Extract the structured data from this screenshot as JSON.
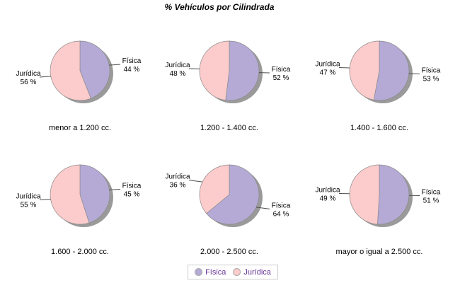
{
  "title": "% Vehículos por Cilindrada",
  "chart_data": {
    "type": "pie",
    "title": "% Vehículos por Cilindrada",
    "legend_position": "bottom",
    "series_names": [
      "Física",
      "Jurídica"
    ],
    "colors": {
      "Física": "#B5AAD6",
      "Jurídica": "#FCCBCB"
    },
    "value_suffix": " %",
    "charts": [
      {
        "category": "menor a 1.200 cc.",
        "values": [
          44,
          56
        ]
      },
      {
        "category": "1.200 - 1.400 cc.",
        "values": [
          52,
          48
        ]
      },
      {
        "category": "1.400 - 1.600 cc.",
        "values": [
          53,
          47
        ]
      },
      {
        "category": "1.600 - 2.000 cc.",
        "values": [
          45,
          55
        ]
      },
      {
        "category": "2.000 - 2.500 cc.",
        "values": [
          64,
          36
        ]
      },
      {
        "category": "mayor o igual a 2.500 cc.",
        "values": [
          51,
          49
        ]
      }
    ]
  },
  "legend": {
    "items": [
      {
        "label": "Física",
        "color": "#B5AAD6"
      },
      {
        "label": "Jurídica",
        "color": "#FCCBCB"
      }
    ]
  },
  "style": {
    "shadow": "#9A9A9A",
    "outline": "#8A8A8A",
    "leader_line": "#4D4D4D",
    "label_color": "#000000",
    "legend_text": "#663399",
    "legend_border": "#CCCCCC",
    "background": "#FFFFFF"
  }
}
